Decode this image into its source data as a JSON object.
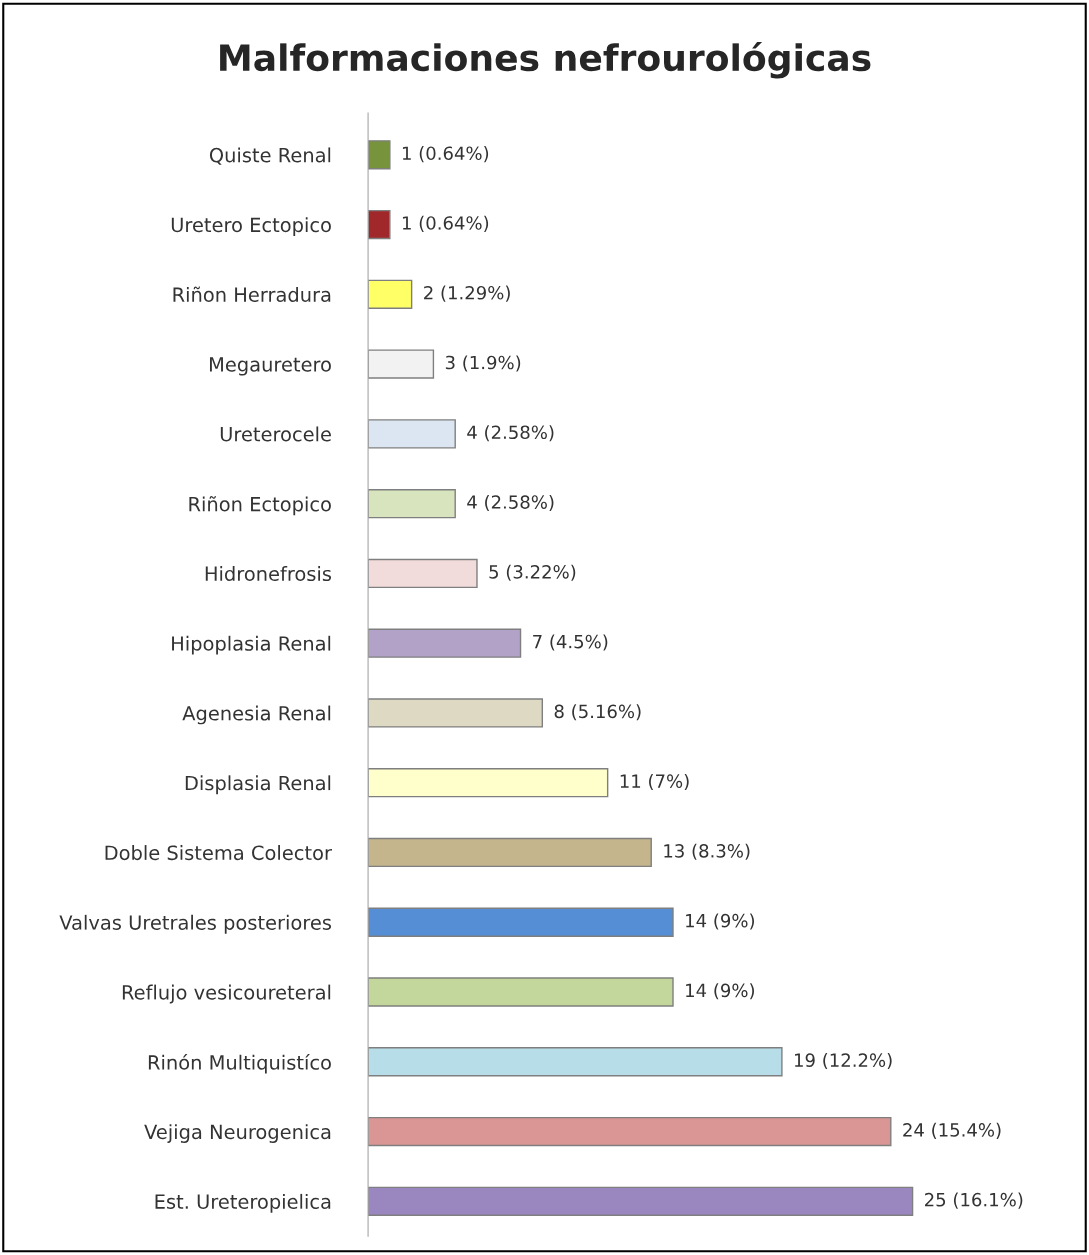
{
  "chart_data": {
    "type": "bar",
    "orientation": "horizontal",
    "title": "Malformaciones nefrourológicas",
    "categories": [
      "Quiste Renal",
      "Uretero Ectopico",
      "Riñon Herradura",
      "Megauretero",
      "Ureterocele",
      "Riñon Ectopico",
      "Hidronefrosis",
      "Hipoplasia Renal",
      "Agenesia Renal",
      "Displasia Renal",
      "Doble Sistema Colector",
      "Valvas Uretrales posteriores",
      "Reflujo vesicoureteral",
      "Rinón Multiquistíco",
      "Vejiga Neurogenica",
      "Est. Ureteropielica"
    ],
    "values": [
      1,
      1,
      2,
      3,
      4,
      4,
      5,
      7,
      8,
      11,
      13,
      14,
      14,
      19,
      24,
      25
    ],
    "value_labels": [
      "1 (0.64%)",
      "1 (0.64%)",
      "2 (1.29%)",
      "3 (1.9%)",
      "4 (2.58%)",
      "4 (2.58%)",
      "5 (3.22%)",
      "7 (4.5%)",
      "8 (5.16%)",
      "11 (7%)",
      "13 (8.3%)",
      "14 (9%)",
      "14 (9%)",
      "19 (12.2%)",
      "24 (15.4%)",
      "25 (16.1%)"
    ],
    "colors": [
      "#77933c",
      "#a0282a",
      "#ffff66",
      "#f2f2f2",
      "#dce6f2",
      "#d7e4bd",
      "#f2dcdb",
      "#b3a2c7",
      "#ddd9c3",
      "#ffffcc",
      "#c4b58c",
      "#558ed5",
      "#c3d69b",
      "#b7dee8",
      "#d99694",
      "#9b87c0"
    ],
    "grid": false,
    "legend": false
  }
}
